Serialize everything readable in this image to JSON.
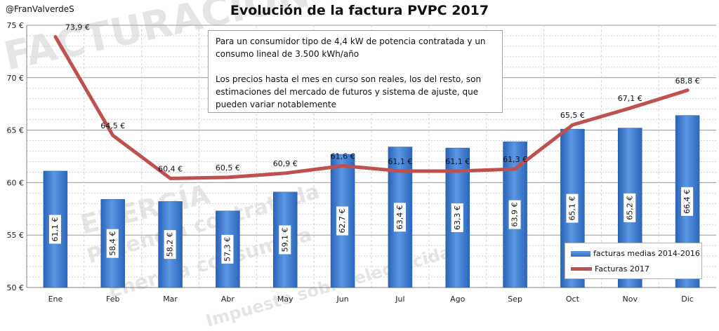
{
  "header": {
    "handle": "@FranValverdeS",
    "title": "Evolución de la factura PVPC 2017"
  },
  "note": {
    "line1": "Para un consumidor tipo de 4,4 kW de potencia contratada y un consumo lineal de 3.500 kWh/año",
    "line2": "Los precios hasta el mes en curso son reales, los del resto, son estimaciones del mercado de futuros y sistema de ajuste, que pueden variar notablemente"
  },
  "watermark": {
    "word1": "FACTURACIÓN",
    "word2": "ENERGÍA",
    "word3": "Potencia contratada",
    "word4": "Energía consumida",
    "word5": "Impuesto sobre electricidad"
  },
  "chart_data": {
    "type": "bar",
    "categories": [
      "Ene",
      "Feb",
      "Mar",
      "Abr",
      "May",
      "Jun",
      "Jul",
      "Ago",
      "Sep",
      "Oct",
      "Nov",
      "Dic"
    ],
    "ylim": [
      50,
      75
    ],
    "yticks": [
      50,
      55,
      60,
      65,
      70,
      75
    ],
    "ytick_labels": [
      "50 €",
      "55 €",
      "60 €",
      "65 €",
      "70 €",
      "75 €"
    ],
    "grid": true,
    "legend_position": "bottom-right",
    "series": [
      {
        "name": "facturas medias 2014-2016",
        "kind": "bar",
        "color": "#3a7bd5",
        "values": [
          61.1,
          58.4,
          58.2,
          57.3,
          59.1,
          62.7,
          63.4,
          63.3,
          63.9,
          65.1,
          65.2,
          66.4
        ],
        "labels": [
          "61,1 €",
          "58,4 €",
          "58,2 €",
          "57,3 €",
          "59,1 €",
          "62,7 €",
          "63,4 €",
          "63,3 €",
          "63,9 €",
          "65,1 €",
          "65,2 €",
          "66,4 €"
        ]
      },
      {
        "name": "Facturas 2017",
        "kind": "line",
        "color": "#c0504d",
        "values": [
          73.9,
          64.5,
          60.4,
          60.5,
          60.9,
          61.6,
          61.1,
          61.1,
          61.3,
          65.5,
          67.1,
          68.8
        ],
        "labels": [
          "73,9 €",
          "64,5 €",
          "60,4 €",
          "60,5 €",
          "60,9 €",
          "61,6 €",
          "61,1 €",
          "61,1 €",
          "61,3 €",
          "65,5 €",
          "67,1 €",
          "68,8 €"
        ]
      }
    ]
  }
}
